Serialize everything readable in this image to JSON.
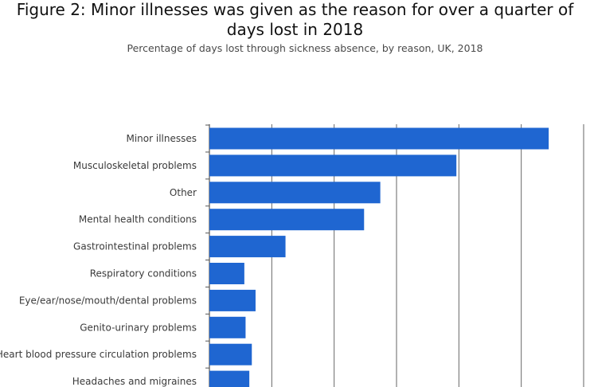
{
  "chart_data": {
    "type": "bar",
    "orientation": "horizontal",
    "title": "Figure 2: Minor illnesses was given as the reason for over a quarter of days lost in 2018",
    "subtitle": "Percentage of days lost through sickness absence, by reason, UK, 2018",
    "xlabel": "",
    "ylabel": "",
    "xlim": [
      0,
      30
    ],
    "grid": true,
    "categories": [
      "Minor illnesses",
      "Musculoskeletal problems",
      "Other",
      "Mental health conditions",
      "Gastrointestinal problems",
      "Respiratory conditions",
      "Eye/ear/nose/mouth/dental problems",
      "Genito-urinary problems",
      "Heart blood pressure circulation problems",
      "Headaches and migraines"
    ],
    "values": [
      27.2,
      19.8,
      13.7,
      12.4,
      6.1,
      2.8,
      3.7,
      2.9,
      3.4,
      3.2
    ],
    "colors": {
      "bar": "#1f66d1",
      "grid": "#666666",
      "axis": "#555555"
    }
  }
}
